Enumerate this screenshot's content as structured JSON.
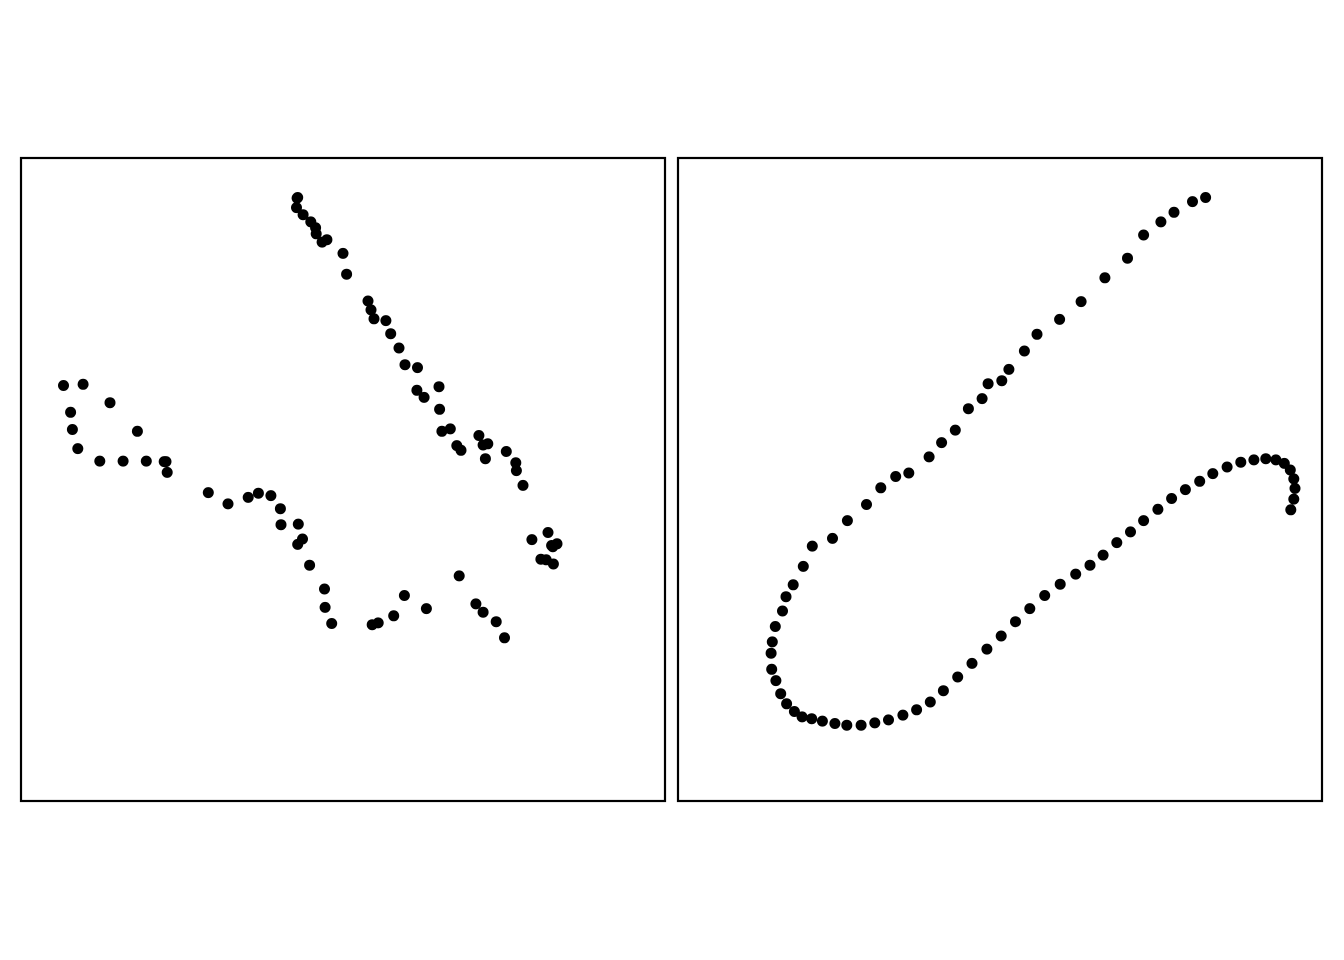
{
  "colors": {
    "background": "#ffffff",
    "point": "#000000",
    "frame": "#000000"
  },
  "chart_data": [
    {
      "type": "scatter",
      "title": "",
      "xlabel": "",
      "ylabel": "",
      "grid": false,
      "axes_ticks": false,
      "xlim": [
        0,
        100
      ],
      "ylim": [
        0,
        100
      ],
      "points": [
        [
          42.2,
          95.7
        ],
        [
          42.4,
          97.4
        ],
        [
          42.3,
          97.3
        ],
        [
          43.3,
          94.5
        ],
        [
          44.6,
          93.3
        ],
        [
          45.5,
          91.3
        ],
        [
          45.4,
          92.3
        ],
        [
          46.5,
          89.9
        ],
        [
          47.3,
          90.3
        ],
        [
          50.0,
          88.0
        ],
        [
          50.6,
          84.5
        ],
        [
          54.2,
          80.0
        ],
        [
          54.7,
          78.5
        ],
        [
          55.2,
          77.0
        ],
        [
          57.2,
          76.7
        ],
        [
          58.0,
          74.5
        ],
        [
          59.4,
          72.1
        ],
        [
          60.4,
          69.3
        ],
        [
          62.5,
          68.8
        ],
        [
          62.4,
          65.0
        ],
        [
          63.6,
          63.8
        ],
        [
          66.1,
          65.6
        ],
        [
          66.2,
          61.8
        ],
        [
          66.6,
          58.1
        ],
        [
          68.0,
          58.5
        ],
        [
          69.1,
          55.7
        ],
        [
          69.8,
          54.9
        ],
        [
          72.8,
          57.4
        ],
        [
          73.5,
          55.8
        ],
        [
          74.3,
          56.0
        ],
        [
          73.9,
          53.5
        ],
        [
          77.4,
          54.7
        ],
        [
          79.0,
          52.8
        ],
        [
          79.1,
          51.5
        ],
        [
          80.2,
          49.0
        ],
        [
          84.4,
          41.1
        ],
        [
          85.2,
          38.7
        ],
        [
          85.9,
          39.2
        ],
        [
          85.3,
          35.8
        ],
        [
          85.0,
          38.9
        ],
        [
          84.1,
          36.5
        ],
        [
          83.2,
          36.6
        ],
        [
          81.7,
          39.9
        ],
        [
          75.7,
          26.1
        ],
        [
          77.1,
          23.4
        ],
        [
          73.5,
          27.7
        ],
        [
          69.5,
          33.8
        ],
        [
          72.3,
          29.1
        ],
        [
          64.0,
          28.3
        ],
        [
          60.3,
          30.5
        ],
        [
          58.5,
          27.1
        ],
        [
          55.9,
          25.9
        ],
        [
          54.9,
          25.6
        ],
        [
          48.1,
          25.8
        ],
        [
          47.0,
          28.5
        ],
        [
          46.9,
          31.6
        ],
        [
          42.4,
          39.1
        ],
        [
          44.4,
          35.6
        ],
        [
          43.2,
          40.0
        ],
        [
          42.5,
          42.5
        ],
        [
          39.6,
          42.4
        ],
        [
          39.5,
          45.1
        ],
        [
          37.9,
          47.3
        ],
        [
          35.8,
          47.7
        ],
        [
          34.1,
          47.0
        ],
        [
          30.7,
          45.9
        ],
        [
          27.4,
          47.8
        ],
        [
          20.5,
          51.2
        ],
        [
          15.5,
          58.1
        ],
        [
          10.9,
          62.9
        ],
        [
          6.4,
          66.0
        ],
        [
          3.1,
          65.8
        ],
        [
          4.3,
          61.3
        ],
        [
          4.6,
          58.4
        ],
        [
          5.5,
          55.2
        ],
        [
          9.2,
          53.1
        ],
        [
          13.1,
          53.1
        ],
        [
          17.0,
          53.1
        ],
        [
          20.3,
          53.0
        ],
        [
          20.0,
          53.0
        ]
      ]
    },
    {
      "type": "scatter",
      "title": "",
      "xlabel": "",
      "ylabel": "",
      "grid": false,
      "axes_ticks": false,
      "xlim": [
        0,
        100
      ],
      "ylim": [
        0,
        100
      ],
      "points": [
        [
          84.5,
          97.4
        ],
        [
          82.3,
          96.7
        ],
        [
          79.2,
          94.9
        ],
        [
          77.0,
          93.3
        ],
        [
          74.1,
          91.1
        ],
        [
          71.4,
          87.2
        ],
        [
          67.6,
          83.9
        ],
        [
          63.6,
          79.9
        ],
        [
          60.0,
          76.9
        ],
        [
          56.2,
          74.4
        ],
        [
          54.1,
          71.6
        ],
        [
          51.5,
          68.5
        ],
        [
          50.3,
          66.6
        ],
        [
          48.0,
          66.1
        ],
        [
          47.0,
          63.6
        ],
        [
          44.7,
          61.9
        ],
        [
          42.5,
          58.3
        ],
        [
          40.2,
          56.2
        ],
        [
          38.1,
          53.8
        ],
        [
          34.7,
          51.1
        ],
        [
          32.5,
          50.5
        ],
        [
          30.0,
          48.6
        ],
        [
          27.6,
          45.8
        ],
        [
          24.4,
          43.1
        ],
        [
          21.9,
          40.1
        ],
        [
          18.5,
          38.8
        ],
        [
          17.0,
          35.4
        ],
        [
          15.3,
          32.3
        ],
        [
          14.1,
          30.3
        ],
        [
          13.5,
          27.9
        ],
        [
          12.3,
          25.3
        ],
        [
          11.8,
          22.7
        ],
        [
          11.6,
          20.8
        ],
        [
          11.7,
          18.1
        ],
        [
          12.4,
          16.2
        ],
        [
          13.2,
          14.0
        ],
        [
          14.2,
          12.3
        ],
        [
          15.5,
          11.0
        ],
        [
          16.8,
          10.1
        ],
        [
          18.4,
          9.8
        ],
        [
          20.2,
          9.4
        ],
        [
          22.3,
          9.0
        ],
        [
          24.3,
          8.7
        ],
        [
          26.7,
          8.7
        ],
        [
          29.0,
          9.1
        ],
        [
          31.3,
          9.6
        ],
        [
          33.7,
          10.4
        ],
        [
          36.0,
          11.3
        ],
        [
          38.3,
          12.6
        ],
        [
          40.5,
          14.5
        ],
        [
          42.9,
          16.8
        ],
        [
          45.3,
          19.1
        ],
        [
          47.8,
          21.5
        ],
        [
          50.2,
          23.7
        ],
        [
          52.6,
          26.1
        ],
        [
          55.0,
          28.3
        ],
        [
          57.5,
          30.5
        ],
        [
          60.1,
          32.4
        ],
        [
          62.7,
          34.1
        ],
        [
          65.1,
          35.6
        ],
        [
          67.3,
          37.3
        ],
        [
          69.6,
          39.4
        ],
        [
          71.9,
          41.2
        ],
        [
          74.1,
          43.1
        ],
        [
          76.5,
          45.0
        ],
        [
          78.8,
          46.8
        ],
        [
          81.1,
          48.3
        ],
        [
          83.5,
          49.7
        ],
        [
          85.7,
          51.0
        ],
        [
          88.1,
          52.1
        ],
        [
          90.4,
          52.9
        ],
        [
          92.6,
          53.3
        ],
        [
          94.6,
          53.5
        ],
        [
          96.3,
          53.3
        ],
        [
          97.7,
          52.7
        ],
        [
          98.7,
          51.6
        ],
        [
          99.3,
          50.1
        ],
        [
          99.5,
          48.5
        ],
        [
          99.3,
          46.7
        ],
        [
          98.8,
          44.9
        ]
      ]
    }
  ]
}
